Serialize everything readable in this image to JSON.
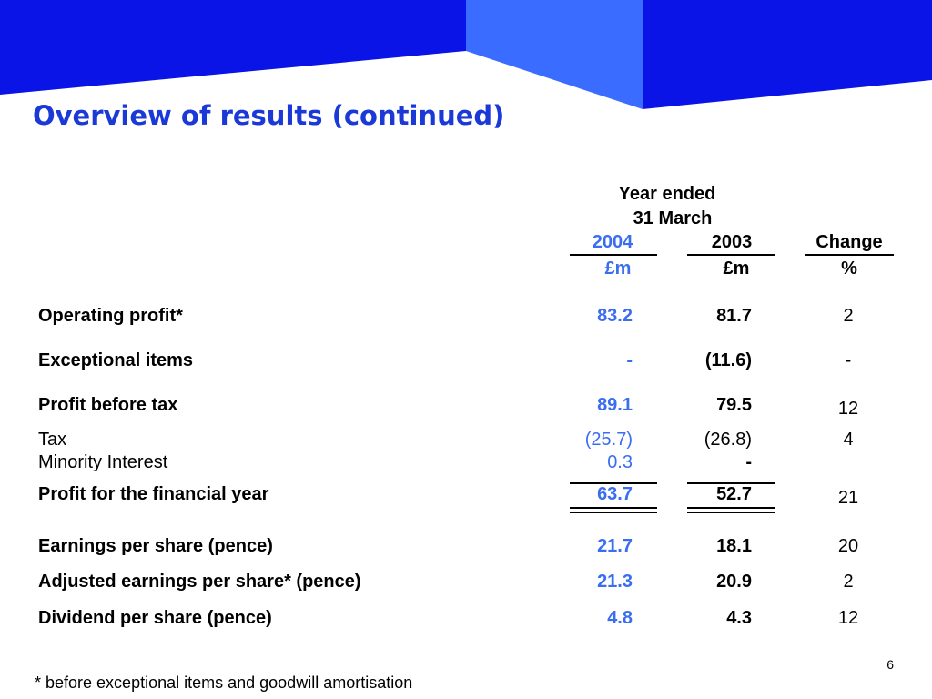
{
  "slide": {
    "title": "Overview of results (continued)",
    "header": {
      "period_line1": "Year ended",
      "period_line2": "31 March",
      "col_2004": "2004",
      "col_2003": "2003",
      "col_change": "Change",
      "unit_2004": "£m",
      "unit_2003": "£m",
      "unit_change": "%"
    },
    "rows": [
      {
        "label": "Operating profit*",
        "v2004": "83.2",
        "v2003": "81.7",
        "change": "2",
        "bold": true
      },
      {
        "label": "Exceptional items",
        "v2004": "-",
        "v2003": "(11.6)",
        "change": "-",
        "bold": true
      },
      {
        "label": "Profit before tax",
        "v2004": "89.1",
        "v2003": "79.5",
        "change": "12",
        "bold": true
      },
      {
        "label": "Tax",
        "v2004": "(25.7)",
        "v2003": "(26.8)",
        "change": "4",
        "bold": false
      },
      {
        "label": "Minority Interest",
        "v2004": "0.3",
        "v2003": "-",
        "change": "",
        "bold": false
      },
      {
        "label": "Profit for the financial year",
        "v2004": "63.7",
        "v2003": "52.7",
        "change": "21",
        "bold": true
      },
      {
        "label": "Earnings per share (pence)",
        "v2004": "21.7",
        "v2003": "18.1",
        "change": "20",
        "bold": true
      },
      {
        "label": "Adjusted earnings per share* (pence)",
        "v2004": "21.3",
        "v2003": "20.9",
        "change": "2",
        "bold": true
      },
      {
        "label": "Dividend per share (pence)",
        "v2004": "4.8",
        "v2003": "4.3",
        "change": "12",
        "bold": true
      }
    ],
    "footnote": "* before exceptional items and goodwill amortisation",
    "page_number": "6"
  },
  "colors": {
    "banner_dark": "#0a14e6",
    "banner_light": "#3a6cff",
    "title": "#1a39d6",
    "value_2004": "#3a6df0"
  }
}
